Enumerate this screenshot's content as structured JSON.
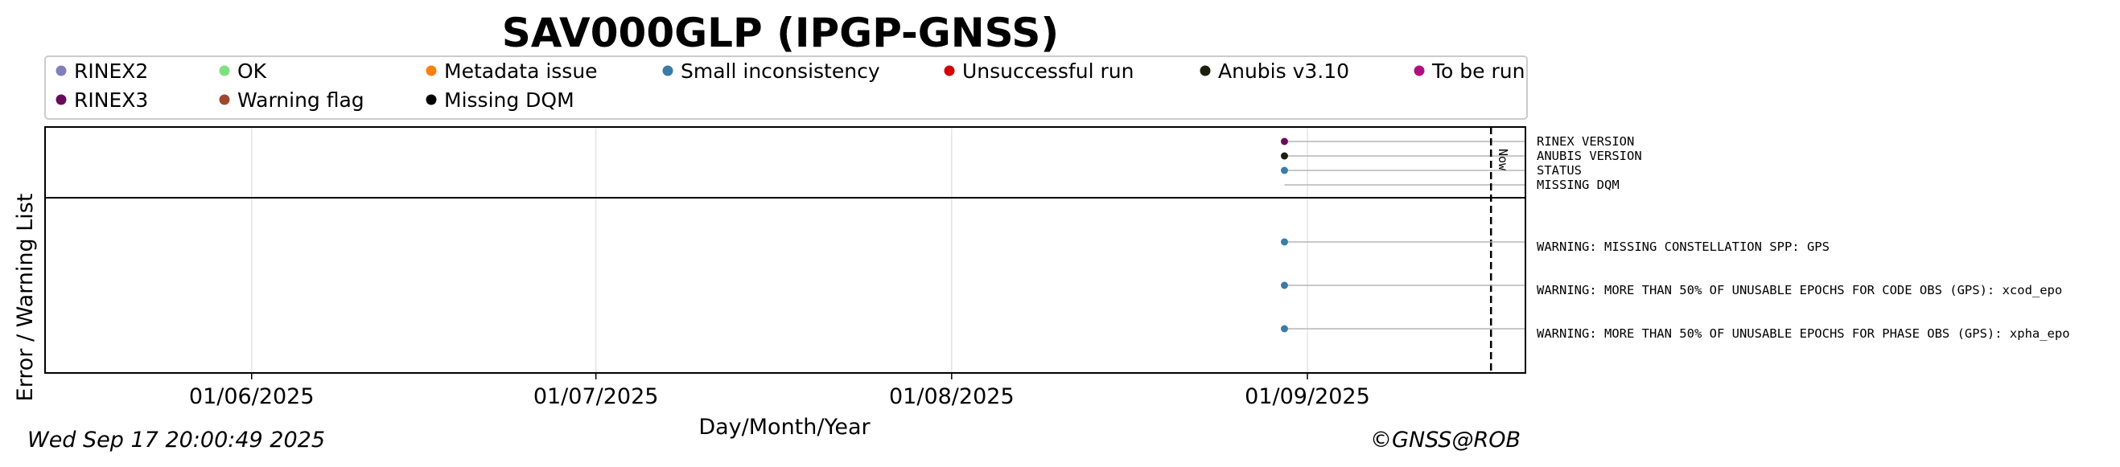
{
  "chart_data": {
    "type": "scatter",
    "title": "SAV000GLP (IPGP-GNSS)",
    "xlabel": "Day/Month/Year",
    "ylabel": "Error / Warning List",
    "xlim": [
      "2025-05-14",
      "2025-09-20"
    ],
    "x_ticks": [
      "01/06/2025",
      "01/07/2025",
      "01/08/2025",
      "01/09/2025"
    ],
    "x_tick_dates": [
      "2025-06-01",
      "2025-07-01",
      "2025-08-01",
      "2025-09-01"
    ],
    "grid": true,
    "legend": [
      {
        "label": "RINEX2",
        "color": "#7f7fbf"
      },
      {
        "label": "OK",
        "color": "#7fe07f"
      },
      {
        "label": "Metadata issue",
        "color": "#ff7f0e"
      },
      {
        "label": "Small inconsistency",
        "color": "#3a7ca8"
      },
      {
        "label": "Unsuccessful run",
        "color": "#d40000"
      },
      {
        "label": "Anubis v3.10",
        "color": "#1b1f0c"
      },
      {
        "label": "To be run",
        "color": "#b0107e"
      },
      {
        "label": "RINEX3",
        "color": "#6a0a5a"
      },
      {
        "label": "Warning flag",
        "color": "#a0482e"
      },
      {
        "label": "Missing DQM",
        "color": "#000000"
      }
    ],
    "now": {
      "label": "Now",
      "date": "2025-09-17"
    },
    "top_rows": [
      {
        "label": "RINEX VERSION",
        "date": "2025-08-30",
        "status": "RINEX3",
        "color": "#6a0a5a"
      },
      {
        "label": "ANUBIS VERSION",
        "date": "2025-08-30",
        "status": "Anubis v3.10",
        "color": "#1b1f0c"
      },
      {
        "label": "STATUS",
        "date": "2025-08-30",
        "status": "Small inconsistency",
        "color": "#3a7ca8"
      },
      {
        "label": "MISSING DQM",
        "date": "2025-08-30",
        "status": null,
        "color": null
      }
    ],
    "warning_rows": [
      {
        "label": "WARNING: MISSING CONSTELLATION SPP: GPS",
        "date": "2025-08-30",
        "color": "#3a7ca8"
      },
      {
        "label": "WARNING: MORE THAN 50% OF UNUSABLE EPOCHS FOR CODE OBS (GPS): xcod_epo",
        "date": "2025-08-30",
        "color": "#3a7ca8"
      },
      {
        "label": "WARNING: MORE THAN 50% OF UNUSABLE EPOCHS FOR PHASE OBS (GPS): xpha_epo",
        "date": "2025-08-30",
        "color": "#3a7ca8"
      }
    ]
  },
  "footer": {
    "timestamp": "Wed Sep 17 20:00:49 2025",
    "copyright": "©GNSS@ROB"
  }
}
